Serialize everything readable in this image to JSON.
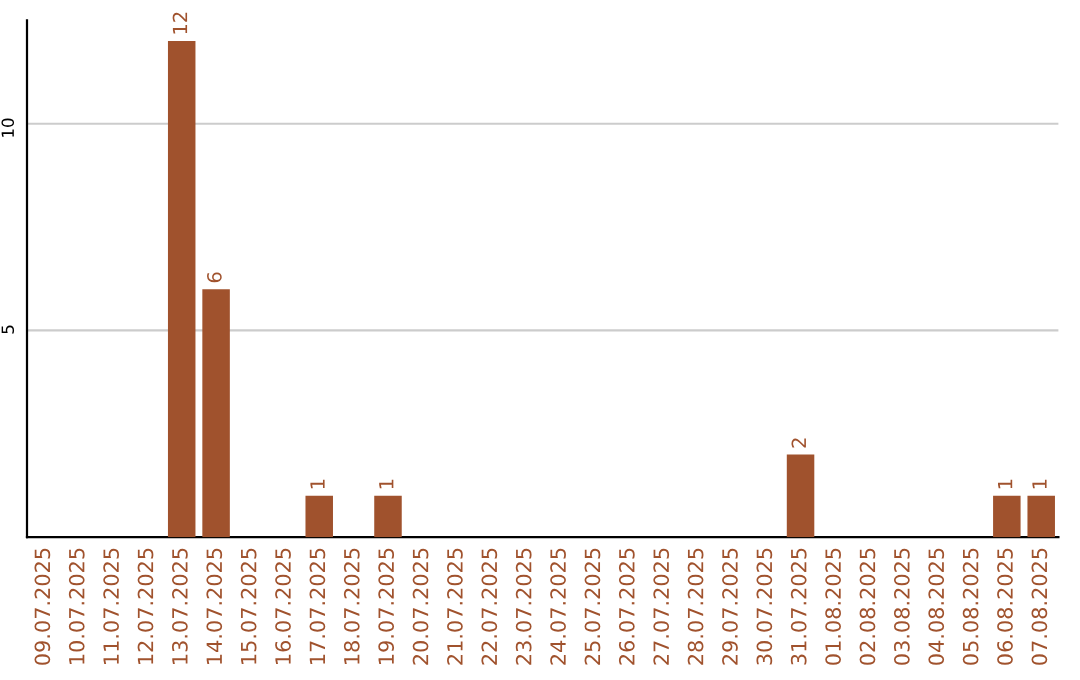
{
  "chart_data": {
    "type": "bar",
    "categories": [
      "09.07.2025",
      "10.07.2025",
      "11.07.2025",
      "12.07.2025",
      "13.07.2025",
      "14.07.2025",
      "15.07.2025",
      "16.07.2025",
      "17.07.2025",
      "18.07.2025",
      "19.07.2025",
      "20.07.2025",
      "21.07.2025",
      "22.07.2025",
      "23.07.2025",
      "24.07.2025",
      "25.07.2025",
      "26.07.2025",
      "27.07.2025",
      "28.07.2025",
      "29.07.2025",
      "30.07.2025",
      "31.07.2025",
      "01.08.2025",
      "02.08.2025",
      "03.08.2025",
      "04.08.2025",
      "05.08.2025",
      "06.08.2025",
      "07.08.2025"
    ],
    "values": [
      0,
      0,
      0,
      0,
      12,
      6,
      0,
      0,
      1,
      0,
      1,
      0,
      0,
      0,
      0,
      0,
      0,
      0,
      0,
      0,
      0,
      0,
      2,
      0,
      0,
      0,
      0,
      0,
      1,
      1
    ],
    "value_labels": [
      null,
      null,
      null,
      null,
      "12",
      "6",
      null,
      null,
      "1",
      null,
      "1",
      null,
      null,
      null,
      null,
      null,
      null,
      null,
      null,
      null,
      null,
      null,
      "2",
      null,
      null,
      null,
      null,
      null,
      "1",
      "1"
    ],
    "color": "#a0522d",
    "ylim": [
      0,
      12.5
    ],
    "yticks": [
      5,
      10
    ],
    "grid": "y"
  }
}
